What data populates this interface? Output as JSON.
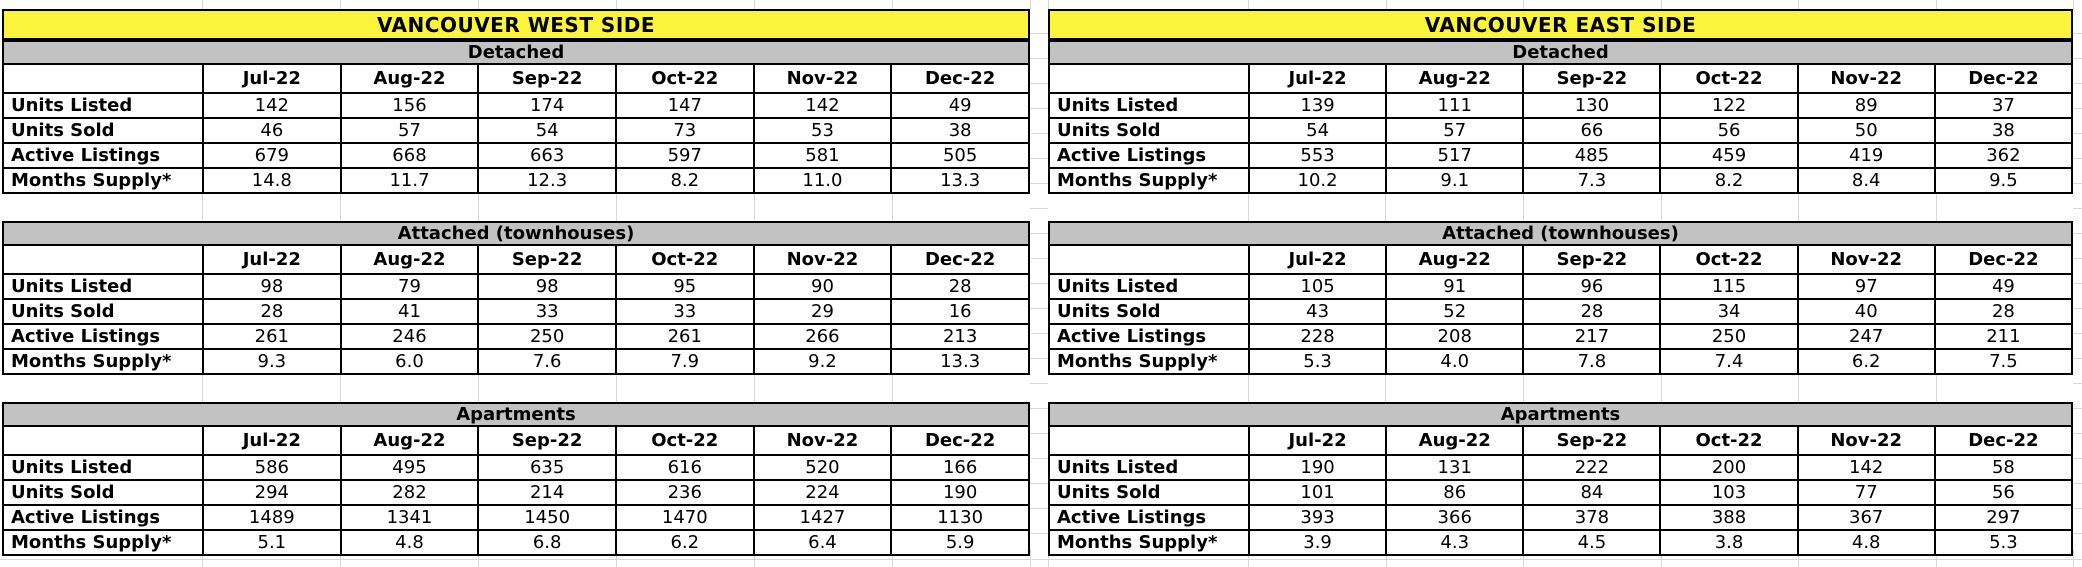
{
  "app": {
    "kind": "spreadsheet-report",
    "subject": "Vancouver real estate inventory by property type"
  },
  "colors": {
    "title_bg": "#FBF43D",
    "section_header_bg": "#C2C2C2",
    "table_border": "#000000",
    "gridline": "#D8D8D8",
    "cell_bg": "#FFFFFF",
    "text": "#000000"
  },
  "months": [
    "Jul-22",
    "Aug-22",
    "Sep-22",
    "Oct-22",
    "Nov-22",
    "Dec-22"
  ],
  "row_labels": [
    "Units Listed",
    "Units Sold",
    "Active Listings",
    "Months Supply*"
  ],
  "sides": [
    {
      "title": "VANCOUVER WEST SIDE",
      "sections": [
        {
          "name": "Detached",
          "rows": [
            [
              "142",
              "156",
              "174",
              "147",
              "142",
              "49"
            ],
            [
              "46",
              "57",
              "54",
              "73",
              "53",
              "38"
            ],
            [
              "679",
              "668",
              "663",
              "597",
              "581",
              "505"
            ],
            [
              "14.8",
              "11.7",
              "12.3",
              "8.2",
              "11.0",
              "13.3"
            ]
          ]
        },
        {
          "name": "Attached (townhouses)",
          "rows": [
            [
              "98",
              "79",
              "98",
              "95",
              "90",
              "28"
            ],
            [
              "28",
              "41",
              "33",
              "33",
              "29",
              "16"
            ],
            [
              "261",
              "246",
              "250",
              "261",
              "266",
              "213"
            ],
            [
              "9.3",
              "6.0",
              "7.6",
              "7.9",
              "9.2",
              "13.3"
            ]
          ]
        },
        {
          "name": "Apartments",
          "rows": [
            [
              "586",
              "495",
              "635",
              "616",
              "520",
              "166"
            ],
            [
              "294",
              "282",
              "214",
              "236",
              "224",
              "190"
            ],
            [
              "1489",
              "1341",
              "1450",
              "1470",
              "1427",
              "1130"
            ],
            [
              "5.1",
              "4.8",
              "6.8",
              "6.2",
              "6.4",
              "5.9"
            ]
          ]
        }
      ]
    },
    {
      "title": "VANCOUVER EAST SIDE",
      "sections": [
        {
          "name": "Detached",
          "rows": [
            [
              "139",
              "111",
              "130",
              "122",
              "89",
              "37"
            ],
            [
              "54",
              "57",
              "66",
              "56",
              "50",
              "38"
            ],
            [
              "553",
              "517",
              "485",
              "459",
              "419",
              "362"
            ],
            [
              "10.2",
              "9.1",
              "7.3",
              "8.2",
              "8.4",
              "9.5"
            ]
          ]
        },
        {
          "name": "Attached (townhouses)",
          "rows": [
            [
              "105",
              "91",
              "96",
              "115",
              "97",
              "49"
            ],
            [
              "43",
              "52",
              "28",
              "34",
              "40",
              "28"
            ],
            [
              "228",
              "208",
              "217",
              "250",
              "247",
              "211"
            ],
            [
              "5.3",
              "4.0",
              "7.8",
              "7.4",
              "6.2",
              "7.5"
            ]
          ]
        },
        {
          "name": "Apartments",
          "rows": [
            [
              "190",
              "131",
              "222",
              "200",
              "142",
              "58"
            ],
            [
              "101",
              "86",
              "84",
              "103",
              "77",
              "56"
            ],
            [
              "393",
              "366",
              "378",
              "388",
              "367",
              "297"
            ],
            [
              "3.9",
              "4.3",
              "4.5",
              "3.8",
              "4.8",
              "5.3"
            ]
          ]
        }
      ]
    }
  ]
}
